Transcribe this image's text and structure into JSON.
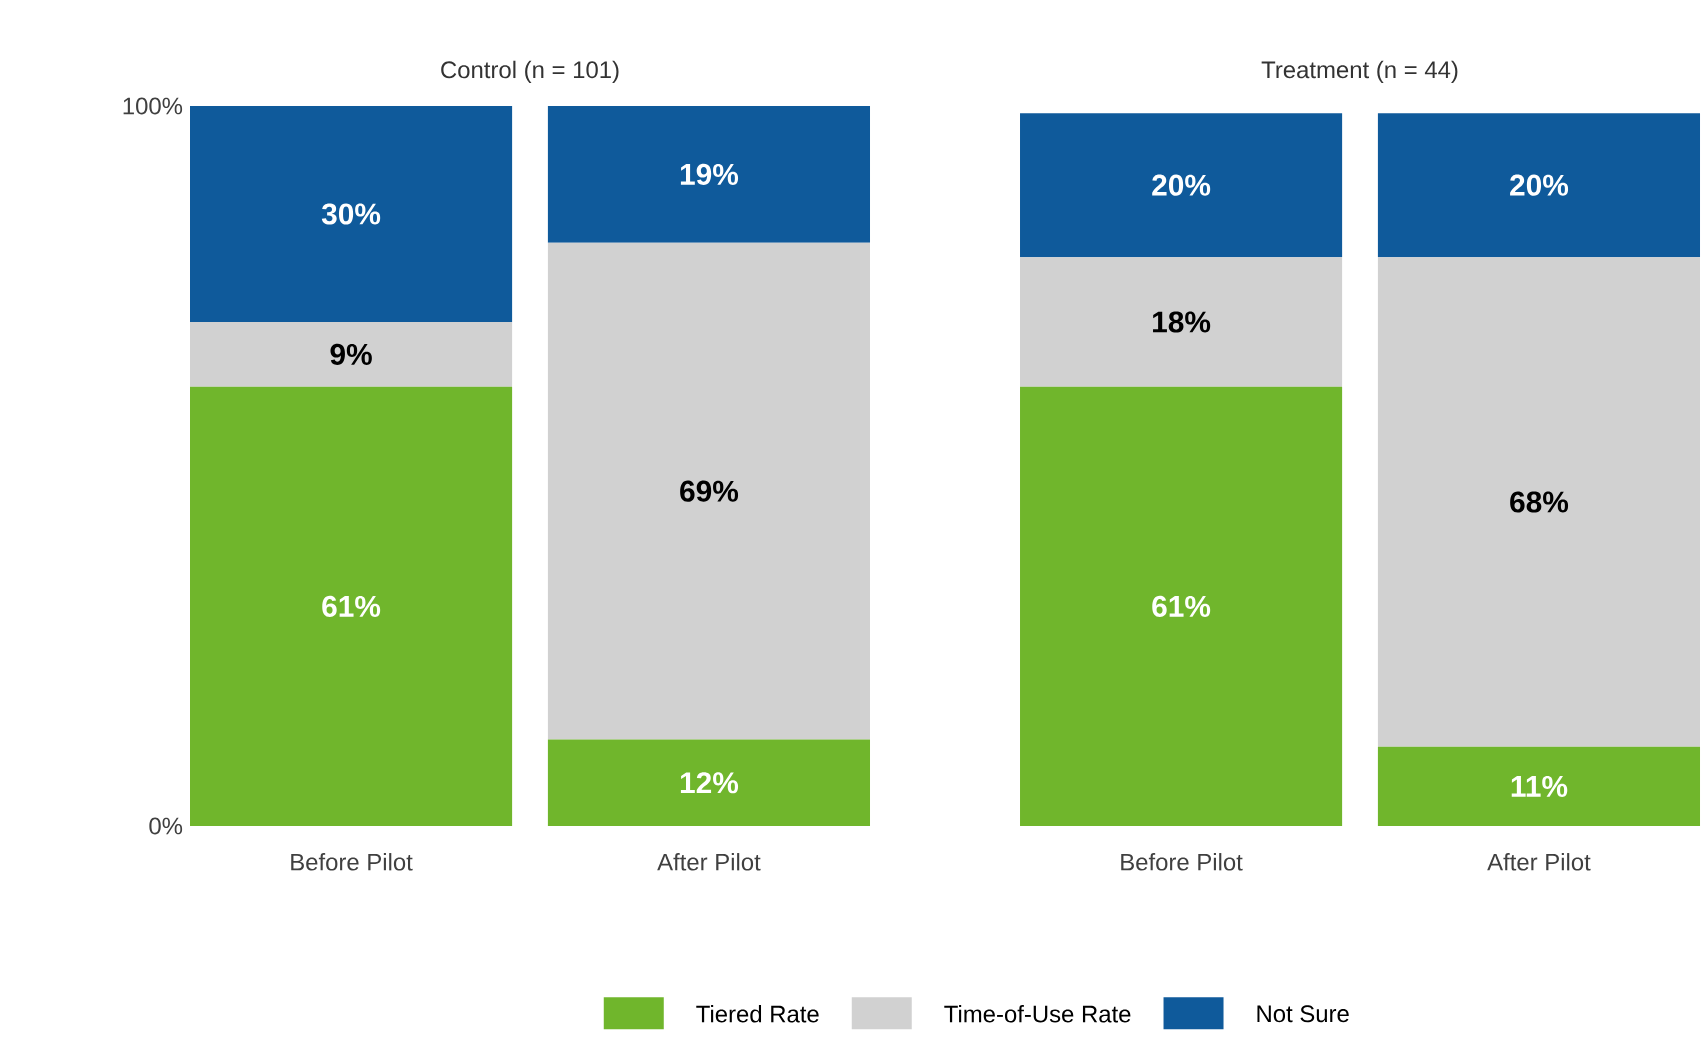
{
  "chart_data": [
    {
      "type": "bar",
      "title": "Control (n = 101)",
      "categories": [
        "Before Pilot",
        "After Pilot"
      ],
      "stacked": true,
      "ylim": [
        0,
        100
      ],
      "yticks": [
        {
          "value": 0,
          "label": "0%"
        },
        {
          "value": 100,
          "label": "100%"
        }
      ],
      "legend": "bottom",
      "series": [
        {
          "name": "Tiered Rate",
          "color": "#70b62c",
          "values": [
            61,
            12
          ],
          "value_labels": [
            "61%",
            "12%"
          ]
        },
        {
          "name": "Time-of-Use Rate",
          "color": "#d1d1d1",
          "values": [
            9,
            69
          ],
          "value_labels": [
            "9%",
            "69%"
          ]
        },
        {
          "name": "Not Sure",
          "color": "#0f5a9b",
          "values": [
            30,
            19
          ],
          "value_labels": [
            "30%",
            "19%"
          ]
        }
      ]
    },
    {
      "type": "bar",
      "title": "Treatment (n = 44)",
      "categories": [
        "Before Pilot",
        "After Pilot"
      ],
      "stacked": true,
      "ylim": [
        0,
        100
      ],
      "tick_labels": "x",
      "series": [
        {
          "color": "#70b62c",
          "values": [
            61,
            11
          ],
          "value_labels": [
            "61%",
            "11%"
          ]
        },
        {
          "color": "#d1d1d1",
          "values": [
            18,
            68
          ],
          "value_labels": [
            "18%",
            "68%"
          ]
        },
        {
          "color": "#0f5a9b",
          "values": [
            20,
            20
          ],
          "value_labels": [
            "20%",
            "20%"
          ]
        }
      ]
    }
  ]
}
